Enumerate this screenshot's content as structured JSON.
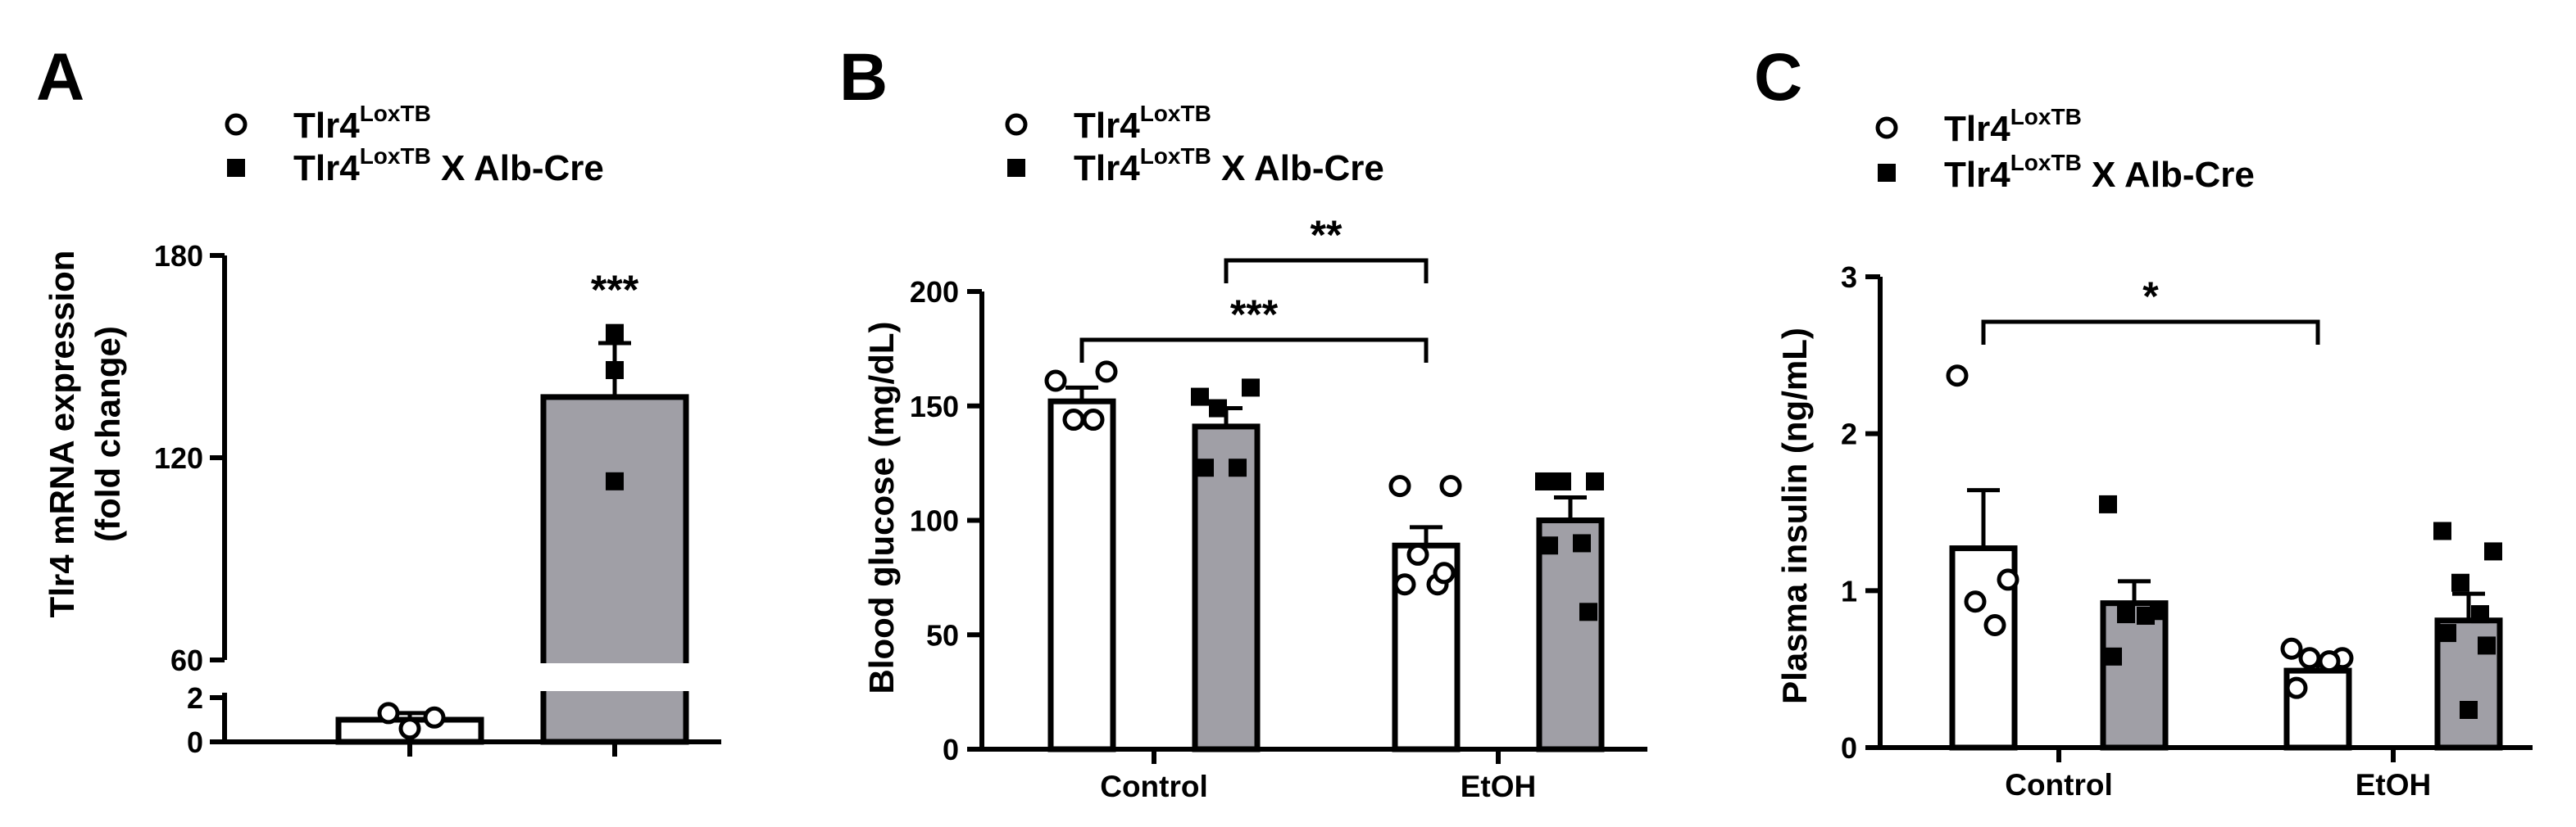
{
  "colors": {
    "open_bar": "#ffffff",
    "filled_bar": "#a09fa6",
    "ink": "#000000"
  },
  "legend": {
    "series1_base": "Tlr4",
    "series1_sup": "LoxTB",
    "series1_suffix": "",
    "series2_base": "Tlr4",
    "series2_sup": "LoxTB",
    "series2_suffix": " X Alb-Cre"
  },
  "chart_data": [
    {
      "panel": "A",
      "type": "bar",
      "ylabel_line1": "Tlr4 mRNA expression",
      "ylabel_line2": "(fold change)",
      "yaxis_break": true,
      "ylim": [
        0,
        180
      ],
      "yticks": [
        "0",
        "2",
        "60",
        "120",
        "180"
      ],
      "categories": [
        ""
      ],
      "series": [
        {
          "name": "Tlr4 LoxTB",
          "style": "open",
          "means": [
            1.0
          ],
          "sem": [
            0.3
          ],
          "points": [
            [
              1.3,
              0.6,
              1.1
            ]
          ]
        },
        {
          "name": "Tlr4 LoxTB X Alb-Cre",
          "style": "filled",
          "means": [
            138
          ],
          "sem": [
            16
          ],
          "points": [
            [
              157,
              146,
              113
            ]
          ]
        }
      ],
      "significance": [
        {
          "label": "***",
          "over": "series2"
        }
      ]
    },
    {
      "panel": "B",
      "type": "bar",
      "ylabel": "Blood glucose (mg/dL)",
      "ylim": [
        0,
        200
      ],
      "yticks": [
        "0",
        "50",
        "100",
        "150",
        "200"
      ],
      "categories": [
        "Control",
        "EtOH"
      ],
      "series": [
        {
          "name": "Tlr4 LoxTB",
          "style": "open",
          "means": [
            152,
            89
          ],
          "sem": [
            6,
            8
          ],
          "points": [
            [
              161,
              165,
              144,
              144
            ],
            [
              115,
              115,
              85,
              72,
              72,
              77
            ]
          ]
        },
        {
          "name": "Tlr4 LoxTB X Alb-Cre",
          "style": "filled",
          "means": [
            141,
            100
          ],
          "sem": [
            8,
            10
          ],
          "points": [
            [
              154,
              158,
              149,
              123,
              123
            ],
            [
              117,
              117,
              117,
              90,
              89,
              60
            ]
          ]
        }
      ],
      "significance": [
        {
          "label": "**",
          "from": "Control / Tlr4 LoxTB X Alb-Cre",
          "to": "EtOH / Tlr4 LoxTB"
        },
        {
          "label": "***",
          "from": "Control / Tlr4 LoxTB",
          "to": "EtOH / Tlr4 LoxTB"
        }
      ]
    },
    {
      "panel": "C",
      "type": "bar",
      "ylabel": "Plasma insulin (ng/mL)",
      "ylim": [
        0,
        3
      ],
      "yticks": [
        "0",
        "1",
        "2",
        "3"
      ],
      "categories": [
        "Control",
        "EtOH"
      ],
      "series": [
        {
          "name": "Tlr4 LoxTB",
          "style": "open",
          "means": [
            1.27,
            0.49
          ],
          "sem": [
            0.37,
            0.05
          ],
          "points": [
            [
              2.37,
              1.07,
              0.93,
              0.78
            ],
            [
              0.63,
              0.57,
              0.57,
              0.55,
              0.38
            ]
          ]
        },
        {
          "name": "Tlr4 LoxTB X Alb-Cre",
          "style": "filled",
          "means": [
            0.92,
            0.81
          ],
          "sem": [
            0.14,
            0.17
          ],
          "points": [
            [
              1.55,
              0.87,
              0.85,
              0.84,
              0.58
            ],
            [
              1.38,
              1.25,
              1.05,
              0.85,
              0.73,
              0.65,
              0.24
            ]
          ]
        }
      ],
      "significance": [
        {
          "label": "*",
          "from": "Control / Tlr4 LoxTB",
          "to": "EtOH / Tlr4 LoxTB"
        }
      ]
    }
  ]
}
